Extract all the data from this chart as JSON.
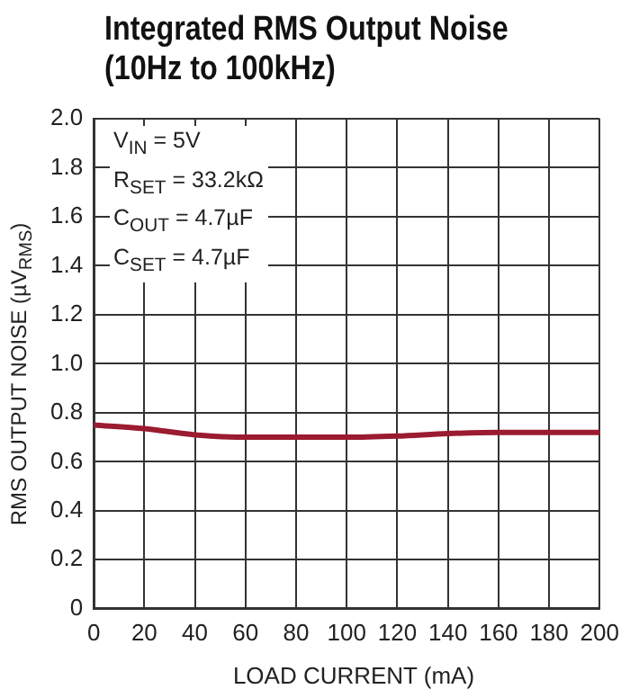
{
  "chart_data": {
    "type": "line",
    "title": "Integrated RMS Output Noise\n(10Hz to 100kHz)",
    "xlabel": "LOAD CURRENT (mA)",
    "ylabel": "RMS OUTPUT NOISE (µV$_{RMS}$)",
    "annotations": [
      "V$_{IN}$ = 5V\nR$_{SET}$ = 33.2kΩ\nC$_{OUT}$ = 4.7µF\nC$_{SET}$ = 4.7µF"
    ],
    "x": [
      0,
      20,
      40,
      60,
      80,
      100,
      120,
      140,
      160,
      180,
      200
    ],
    "series": [
      {
        "color": "#9b1b30",
        "values": [
          0.75,
          0.735,
          0.71,
          0.7,
          0.7,
          0.7,
          0.705,
          0.715,
          0.72,
          0.72,
          0.72
        ]
      }
    ],
    "xlim": [
      0,
      200
    ],
    "xticks": [
      0,
      20,
      40,
      60,
      80,
      100,
      120,
      140,
      160,
      180,
      200
    ],
    "ylim": [
      0,
      2.0
    ],
    "yticks": [
      {
        "value": 0,
        "label": "0"
      },
      {
        "value": 0.2,
        "label": "0.2"
      },
      {
        "value": 0.4,
        "label": "0.4"
      },
      {
        "value": 0.6,
        "label": "0.6"
      },
      {
        "value": 0.8,
        "label": "0.8"
      },
      {
        "value": 1.0,
        "label": "1.0"
      },
      {
        "value": 1.2,
        "label": "1.2"
      },
      {
        "value": 1.4,
        "label": "1.4"
      },
      {
        "value": 1.6,
        "label": "1.6"
      },
      {
        "value": 1.8,
        "label": "1.8"
      },
      {
        "value": 2.0,
        "label": "2.0"
      }
    ],
    "grid": true,
    "legend": false,
    "marker": "none",
    "line_style": "solid"
  }
}
